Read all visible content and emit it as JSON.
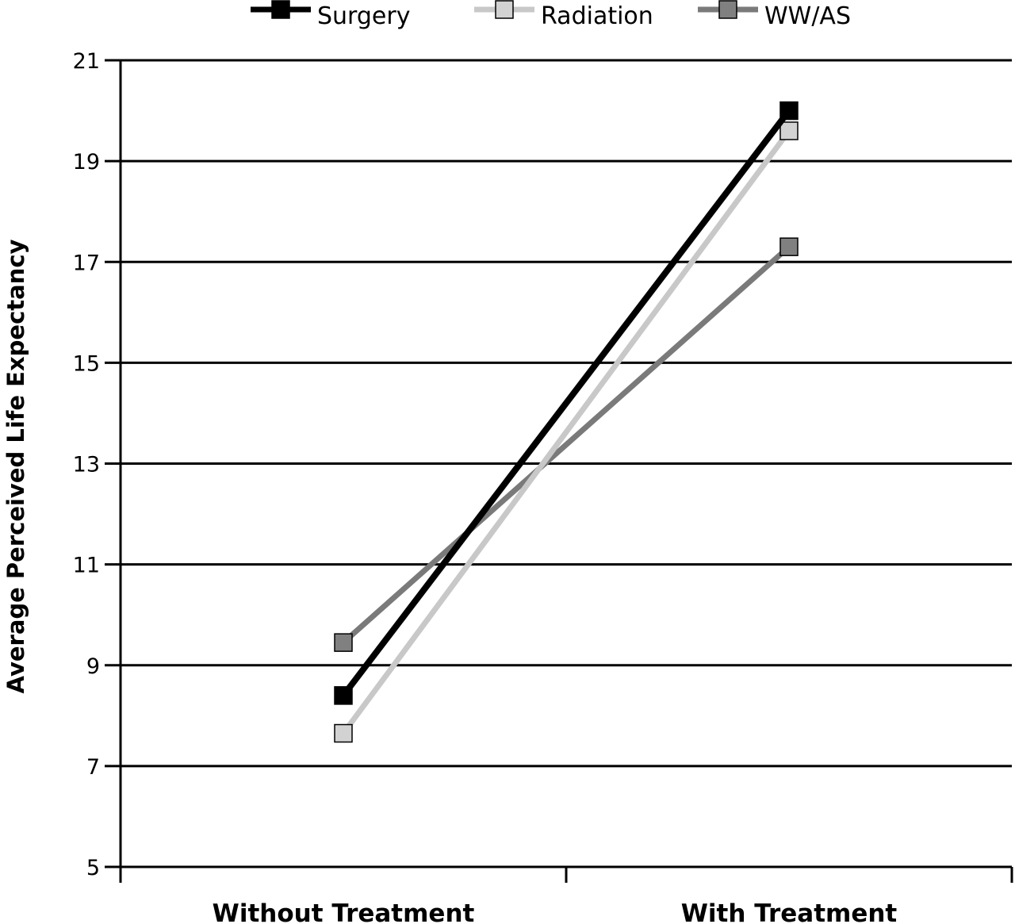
{
  "chart_data": {
    "type": "line",
    "categories": [
      "Without Treatment",
      "With Treatment"
    ],
    "ylabel": "Average Perceived Life Expectancy",
    "ylim": [
      5,
      21
    ],
    "yticks": [
      5,
      7,
      9,
      11,
      13,
      15,
      17,
      19,
      21
    ],
    "grid": true,
    "legend_position": "top",
    "series": [
      {
        "name": "Surgery",
        "values": [
          8.4,
          20.0
        ],
        "color": "#000000",
        "marker_fill": "#000000"
      },
      {
        "name": "Radiation",
        "values": [
          7.65,
          19.6
        ],
        "color": "#c8c8c8",
        "marker_fill": "#d2d2d2"
      },
      {
        "name": "WW/AS",
        "values": [
          9.45,
          17.3
        ],
        "color": "#7a7a7a",
        "marker_fill": "#808080"
      }
    ]
  }
}
